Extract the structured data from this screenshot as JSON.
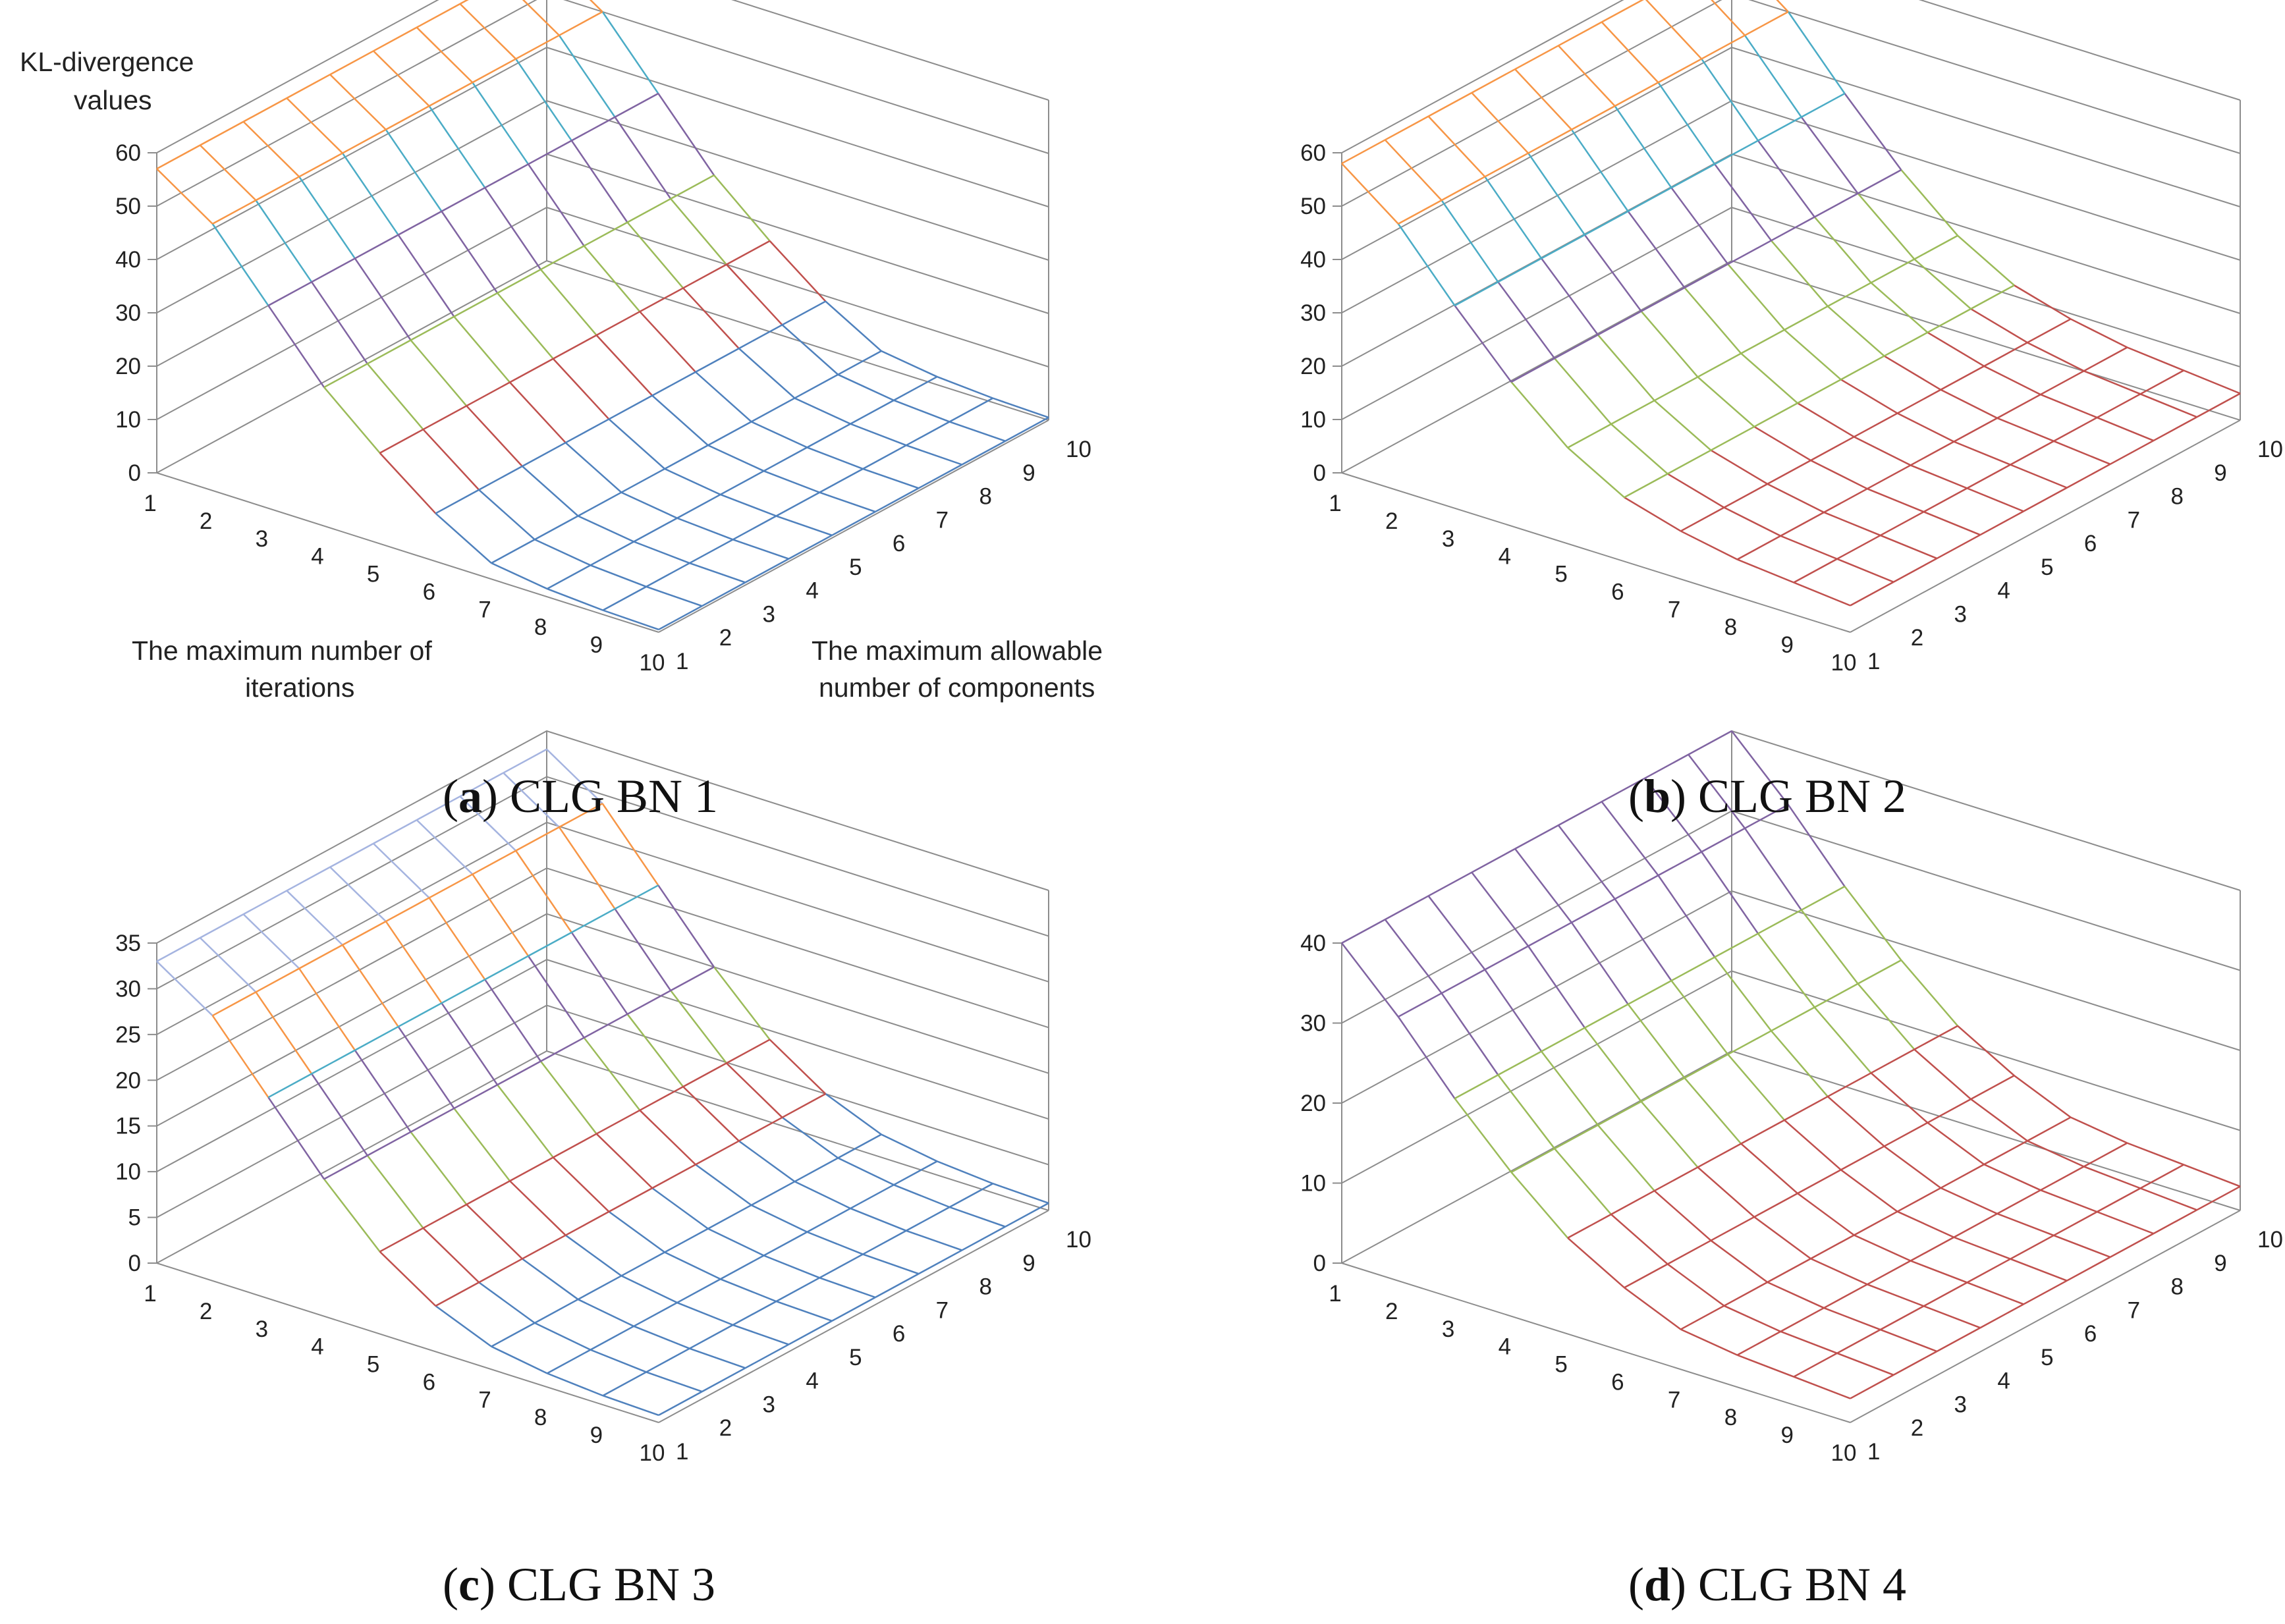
{
  "figure": {
    "captions": [
      {
        "letter": "a",
        "text": "CLG BN 1"
      },
      {
        "letter": "b",
        "text": "CLG BN 2"
      },
      {
        "letter": "c",
        "text": "CLG BN 3"
      },
      {
        "letter": "d",
        "text": "CLG BN 4"
      }
    ]
  },
  "chart_data": [
    {
      "type": "surface",
      "panel": "a",
      "title": "CLG BN 1",
      "zlabel": [
        "KL-divergence",
        "values"
      ],
      "xlabel": [
        "The maximum number of",
        "iterations"
      ],
      "ylabel": [
        "The maximum allowable",
        "number of components"
      ],
      "x_ticks": [
        "1",
        "2",
        "3",
        "4",
        "5",
        "6",
        "7",
        "8",
        "9",
        "10"
      ],
      "y_ticks": [
        "1",
        "2",
        "3",
        "4",
        "5",
        "6",
        "7",
        "8",
        "9",
        "10"
      ],
      "z_ticks": [
        "0",
        "10",
        "20",
        "30",
        "40",
        "50",
        "60"
      ],
      "zlim": [
        0,
        60
      ],
      "band_colors": [
        "#4f81bd",
        "#c0504d",
        "#9bbb59",
        "#8064a2",
        "#4bacc6",
        "#f79646"
      ],
      "row_profile": [
        57,
        50,
        38,
        26,
        17,
        9,
        3,
        1.5,
        0.8,
        0.5
      ],
      "component_factor": [
        1,
        1,
        1,
        1,
        1,
        1,
        1,
        1,
        1,
        1
      ]
    },
    {
      "type": "surface",
      "panel": "b",
      "title": "CLG BN 2",
      "x_ticks": [
        "1",
        "2",
        "3",
        "4",
        "5",
        "6",
        "7",
        "8",
        "9",
        "10"
      ],
      "y_ticks": [
        "1",
        "2",
        "3",
        "4",
        "5",
        "6",
        "7",
        "8",
        "9",
        "10"
      ],
      "z_ticks": [
        "0",
        "10",
        "20",
        "30",
        "40",
        "50",
        "60"
      ],
      "zlim": [
        0,
        60
      ],
      "band_colors": [
        "#c0504d",
        "#9bbb59",
        "#8064a2",
        "#4bacc6",
        "#f79646"
      ],
      "row_profile": [
        58,
        50,
        38,
        27,
        18,
        12,
        9,
        7,
        6,
        5
      ],
      "component_factor": [
        1,
        1,
        1,
        1,
        1,
        1,
        1,
        1,
        1,
        1
      ]
    },
    {
      "type": "surface",
      "panel": "c",
      "title": "CLG BN 3",
      "x_ticks": [
        "1",
        "2",
        "3",
        "4",
        "5",
        "6",
        "7",
        "8",
        "9",
        "10"
      ],
      "y_ticks": [
        "1",
        "2",
        "3",
        "4",
        "5",
        "6",
        "7",
        "8",
        "9",
        "10"
      ],
      "z_ticks": [
        "0",
        "5",
        "10",
        "15",
        "20",
        "25",
        "30",
        "35"
      ],
      "zlim": [
        0,
        35
      ],
      "band_colors": [
        "#4f81bd",
        "#c0504d",
        "#9bbb59",
        "#8064a2",
        "#4bacc6",
        "#f79646",
        "#a5b4e0"
      ],
      "row_profile": [
        33,
        29,
        22,
        15,
        9,
        5,
        2.5,
        1.5,
        1,
        0.8
      ],
      "component_factor": [
        1,
        1,
        1,
        1,
        1,
        1,
        1,
        1,
        1,
        1
      ]
    },
    {
      "type": "surface",
      "panel": "d",
      "title": "CLG BN 4",
      "x_ticks": [
        "1",
        "2",
        "3",
        "4",
        "5",
        "6",
        "7",
        "8",
        "9",
        "10"
      ],
      "y_ticks": [
        "1",
        "2",
        "3",
        "4",
        "5",
        "6",
        "7",
        "8",
        "9",
        "10"
      ],
      "z_ticks": [
        "0",
        "10",
        "20",
        "30",
        "40"
      ],
      "zlim": [
        0,
        40
      ],
      "band_colors": [
        "#c0504d",
        "#9bbb59",
        "#8064a2"
      ],
      "row_profile": [
        40,
        33,
        25,
        18,
        12,
        8,
        5,
        4,
        3.5,
        3
      ],
      "component_factor": [
        1,
        1,
        1,
        1,
        1,
        1,
        1,
        1,
        1,
        1
      ]
    }
  ]
}
